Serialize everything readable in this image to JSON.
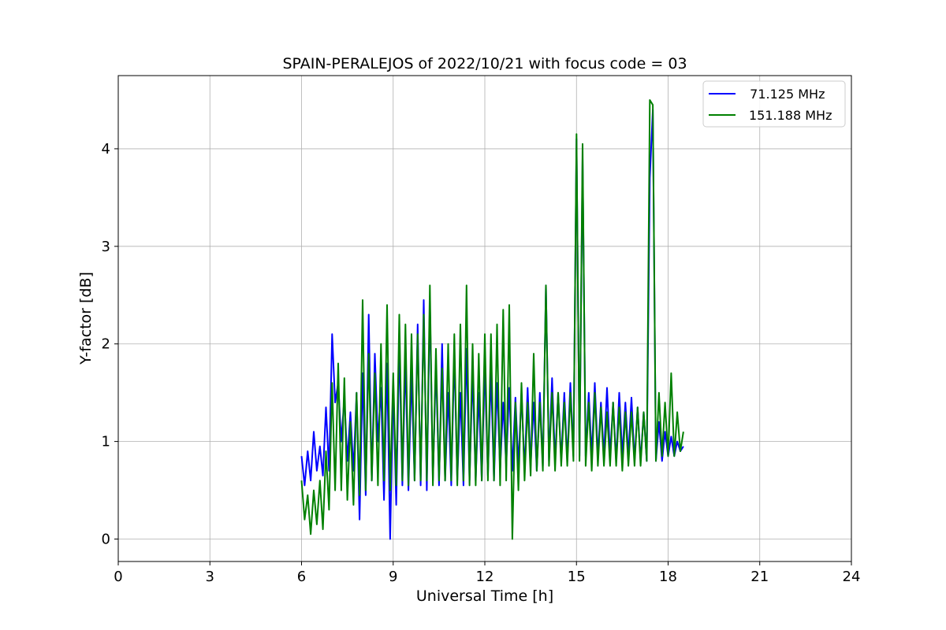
{
  "chart_data": {
    "type": "line",
    "title": "SPAIN-PERALEJOS of 2022/10/21 with focus code = 03",
    "xlabel": "Universal Time [h]",
    "ylabel": "Y-factor [dB]",
    "xlim": [
      0,
      24
    ],
    "ylim": [
      -0.23,
      4.75
    ],
    "xticks": [
      0,
      3,
      6,
      9,
      12,
      15,
      18,
      21,
      24
    ],
    "yticks": [
      0,
      1,
      2,
      3,
      4
    ],
    "grid": true,
    "legend_position": "top-right",
    "series": [
      {
        "name": "  71.125 MHz",
        "color": "#0000ff",
        "x": [
          6.0,
          6.1,
          6.2,
          6.3,
          6.4,
          6.5,
          6.6,
          6.7,
          6.8,
          6.9,
          7.0,
          7.1,
          7.2,
          7.3,
          7.4,
          7.5,
          7.6,
          7.7,
          7.8,
          7.9,
          8.0,
          8.1,
          8.2,
          8.3,
          8.4,
          8.5,
          8.6,
          8.7,
          8.8,
          8.9,
          9.0,
          9.1,
          9.2,
          9.3,
          9.4,
          9.5,
          9.6,
          9.7,
          9.8,
          9.9,
          10.0,
          10.1,
          10.2,
          10.3,
          10.4,
          10.5,
          10.6,
          10.7,
          10.8,
          10.9,
          11.0,
          11.1,
          11.2,
          11.3,
          11.4,
          11.5,
          11.6,
          11.7,
          11.8,
          11.9,
          12.0,
          12.1,
          12.2,
          12.3,
          12.4,
          12.5,
          12.6,
          12.7,
          12.8,
          12.9,
          13.0,
          13.1,
          13.2,
          13.3,
          13.4,
          13.5,
          13.6,
          13.7,
          13.8,
          13.9,
          14.0,
          14.1,
          14.2,
          14.3,
          14.4,
          14.5,
          14.6,
          14.7,
          14.8,
          14.9,
          15.0,
          15.1,
          15.2,
          15.3,
          15.4,
          15.5,
          15.6,
          15.7,
          15.8,
          15.9,
          16.0,
          16.1,
          16.2,
          16.3,
          16.4,
          16.5,
          16.6,
          16.7,
          16.8,
          16.9,
          17.0,
          17.1,
          17.2,
          17.3,
          17.4,
          17.5,
          17.6,
          17.7,
          17.8,
          17.9,
          18.0,
          18.1,
          18.2,
          18.3,
          18.4,
          18.5
        ],
        "y": [
          0.85,
          0.55,
          0.9,
          0.6,
          1.1,
          0.7,
          0.95,
          0.65,
          1.35,
          0.7,
          2.1,
          1.4,
          1.6,
          1.0,
          1.45,
          0.8,
          1.3,
          0.7,
          1.5,
          0.2,
          1.7,
          0.45,
          2.3,
          0.6,
          1.9,
          1.0,
          1.55,
          0.4,
          1.8,
          0.0,
          1.6,
          0.35,
          2.0,
          0.55,
          1.85,
          0.5,
          1.7,
          0.6,
          2.2,
          0.55,
          2.45,
          0.5,
          2.45,
          0.6,
          1.8,
          0.55,
          2.0,
          0.6,
          1.5,
          0.55,
          1.9,
          0.6,
          1.5,
          0.55,
          1.95,
          0.6,
          1.7,
          0.6,
          1.5,
          0.6,
          1.8,
          0.65,
          1.7,
          0.6,
          1.6,
          0.7,
          1.4,
          0.75,
          1.55,
          0.7,
          1.45,
          0.75,
          1.5,
          0.7,
          1.55,
          0.75,
          1.4,
          0.7,
          1.5,
          0.75,
          2.6,
          0.8,
          1.65,
          0.8,
          1.5,
          0.8,
          1.5,
          0.8,
          1.6,
          0.85,
          4.1,
          0.85,
          3.9,
          0.85,
          1.5,
          0.85,
          1.6,
          0.85,
          1.4,
          0.85,
          1.55,
          0.85,
          1.4,
          0.8,
          1.5,
          0.85,
          1.4,
          0.85,
          1.45,
          0.8,
          1.35,
          0.8,
          1.3,
          0.8,
          3.7,
          4.4,
          0.8,
          1.2,
          0.8,
          1.1,
          0.85,
          1.05,
          0.85,
          1.0,
          0.9,
          0.95
        ]
      },
      {
        "name": "151.188 MHz",
        "color": "#008000",
        "x": [
          6.0,
          6.1,
          6.2,
          6.3,
          6.4,
          6.5,
          6.6,
          6.7,
          6.8,
          6.9,
          7.0,
          7.1,
          7.2,
          7.3,
          7.4,
          7.5,
          7.6,
          7.7,
          7.8,
          7.9,
          8.0,
          8.1,
          8.2,
          8.3,
          8.4,
          8.5,
          8.6,
          8.7,
          8.8,
          8.9,
          9.0,
          9.1,
          9.2,
          9.3,
          9.4,
          9.5,
          9.6,
          9.7,
          9.8,
          9.9,
          10.0,
          10.1,
          10.2,
          10.3,
          10.4,
          10.5,
          10.6,
          10.7,
          10.8,
          10.9,
          11.0,
          11.1,
          11.2,
          11.3,
          11.4,
          11.5,
          11.6,
          11.7,
          11.8,
          11.9,
          12.0,
          12.1,
          12.2,
          12.3,
          12.4,
          12.5,
          12.6,
          12.7,
          12.8,
          12.9,
          13.0,
          13.1,
          13.2,
          13.3,
          13.4,
          13.5,
          13.6,
          13.7,
          13.8,
          13.9,
          14.0,
          14.1,
          14.2,
          14.3,
          14.4,
          14.5,
          14.6,
          14.7,
          14.8,
          14.9,
          15.0,
          15.1,
          15.2,
          15.3,
          15.4,
          15.5,
          15.6,
          15.7,
          15.8,
          15.9,
          16.0,
          16.1,
          16.2,
          16.3,
          16.4,
          16.5,
          16.6,
          16.7,
          16.8,
          16.9,
          17.0,
          17.1,
          17.2,
          17.3,
          17.4,
          17.5,
          17.6,
          17.7,
          17.8,
          17.9,
          18.0,
          18.1,
          18.2,
          18.3,
          18.4,
          18.5
        ],
        "y": [
          0.6,
          0.2,
          0.45,
          0.05,
          0.5,
          0.15,
          0.6,
          0.1,
          0.9,
          0.3,
          1.6,
          0.5,
          1.8,
          0.5,
          1.65,
          0.4,
          1.2,
          0.35,
          1.5,
          0.45,
          2.45,
          0.5,
          1.9,
          0.6,
          1.7,
          0.55,
          2.0,
          0.6,
          2.4,
          0.5,
          1.7,
          0.55,
          2.3,
          0.6,
          2.2,
          0.55,
          2.1,
          0.6,
          2.1,
          0.6,
          2.3,
          0.6,
          2.6,
          0.55,
          1.95,
          0.6,
          1.75,
          0.6,
          2.0,
          0.6,
          2.1,
          0.55,
          2.2,
          0.6,
          2.6,
          0.55,
          2.0,
          0.55,
          1.9,
          0.6,
          2.1,
          0.6,
          2.1,
          0.6,
          2.2,
          0.55,
          2.35,
          0.6,
          2.4,
          0.0,
          1.4,
          0.5,
          1.6,
          0.6,
          1.4,
          0.65,
          1.9,
          0.7,
          1.4,
          0.7,
          2.6,
          0.75,
          1.5,
          0.7,
          1.5,
          0.75,
          1.4,
          0.75,
          1.5,
          0.8,
          4.15,
          0.8,
          4.05,
          0.75,
          1.4,
          0.7,
          1.5,
          0.75,
          1.35,
          0.75,
          1.3,
          0.75,
          1.4,
          0.75,
          1.35,
          0.7,
          1.3,
          0.75,
          1.3,
          0.75,
          1.35,
          0.75,
          1.3,
          0.8,
          4.5,
          4.45,
          0.8,
          1.5,
          0.85,
          1.4,
          0.85,
          1.7,
          0.85,
          1.3,
          0.9,
          1.1
        ]
      }
    ]
  }
}
